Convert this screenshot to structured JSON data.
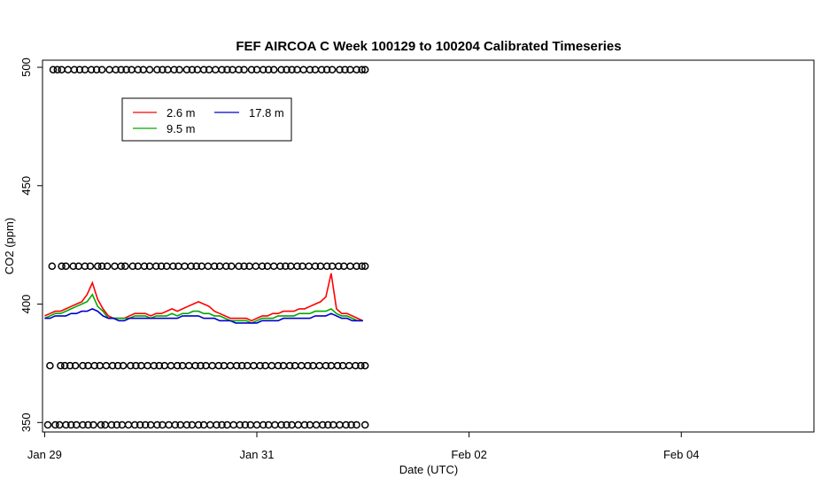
{
  "chart_data": {
    "type": "line",
    "title": "FEF AIRCOA C  Week 100129 to 100204  Calibrated Timeseries",
    "xlabel": "Date (UTC)",
    "ylabel": "CO2 (ppm)",
    "x_unit": "days",
    "xlim": [
      -0.02,
      7.25
    ],
    "ylim": [
      346,
      503
    ],
    "x_ticks": [
      {
        "value": 0,
        "label": "Jan 29"
      },
      {
        "value": 2,
        "label": "Jan 31"
      },
      {
        "value": 4,
        "label": "Feb 02"
      },
      {
        "value": 6,
        "label": "Feb 04"
      }
    ],
    "y_ticks": [
      {
        "value": 350,
        "label": "350"
      },
      {
        "value": 400,
        "label": "400"
      },
      {
        "value": 450,
        "label": "450"
      },
      {
        "value": 500,
        "label": "500"
      }
    ],
    "grid": false,
    "legend": {
      "position": "top-left",
      "entries": [
        {
          "label": "2.6 m",
          "color": "#ff0000"
        },
        {
          "label": "9.5 m",
          "color": "#00aa00"
        },
        {
          "label": "17.8 m",
          "color": "#0000cc"
        }
      ]
    },
    "series": [
      {
        "name": "2.6 m",
        "color": "#ff0000",
        "x": [
          0.0,
          0.05,
          0.1,
          0.15,
          0.2,
          0.25,
          0.3,
          0.35,
          0.4,
          0.45,
          0.5,
          0.55,
          0.6,
          0.65,
          0.7,
          0.75,
          0.8,
          0.85,
          0.9,
          0.95,
          1.0,
          1.05,
          1.1,
          1.15,
          1.2,
          1.25,
          1.3,
          1.35,
          1.4,
          1.45,
          1.5,
          1.55,
          1.6,
          1.65,
          1.7,
          1.75,
          1.8,
          1.85,
          1.9,
          1.95,
          2.0,
          2.05,
          2.1,
          2.15,
          2.2,
          2.25,
          2.3,
          2.35,
          2.4,
          2.45,
          2.5,
          2.55,
          2.6,
          2.65,
          2.7,
          2.75,
          2.8,
          2.85,
          2.9,
          2.95,
          3.0
        ],
        "values": [
          395,
          396,
          397,
          397,
          398,
          399,
          400,
          401,
          404,
          409,
          402,
          398,
          395,
          394,
          394,
          394,
          395,
          396,
          396,
          396,
          395,
          396,
          396,
          397,
          398,
          397,
          398,
          399,
          400,
          401,
          400,
          399,
          397,
          396,
          395,
          394,
          394,
          394,
          394,
          393,
          394,
          395,
          395,
          396,
          396,
          397,
          397,
          397,
          398,
          398,
          399,
          400,
          401,
          403,
          413,
          398,
          396,
          396,
          395,
          394,
          393
        ]
      },
      {
        "name": "9.5 m",
        "color": "#00aa00",
        "x": [
          0.0,
          0.05,
          0.1,
          0.15,
          0.2,
          0.25,
          0.3,
          0.35,
          0.4,
          0.45,
          0.5,
          0.55,
          0.6,
          0.65,
          0.7,
          0.75,
          0.8,
          0.85,
          0.9,
          0.95,
          1.0,
          1.05,
          1.1,
          1.15,
          1.2,
          1.25,
          1.3,
          1.35,
          1.4,
          1.45,
          1.5,
          1.55,
          1.6,
          1.65,
          1.7,
          1.75,
          1.8,
          1.85,
          1.9,
          1.95,
          2.0,
          2.05,
          2.1,
          2.15,
          2.2,
          2.25,
          2.3,
          2.35,
          2.4,
          2.45,
          2.5,
          2.55,
          2.6,
          2.65,
          2.7,
          2.75,
          2.8,
          2.85,
          2.9,
          2.95,
          3.0
        ],
        "values": [
          394,
          395,
          396,
          396,
          397,
          398,
          399,
          400,
          401,
          404,
          399,
          397,
          394,
          394,
          394,
          394,
          394,
          395,
          395,
          395,
          394,
          395,
          395,
          395,
          396,
          395,
          396,
          396,
          397,
          397,
          396,
          396,
          395,
          395,
          394,
          393,
          393,
          393,
          393,
          392,
          393,
          394,
          394,
          394,
          395,
          395,
          395,
          395,
          396,
          396,
          396,
          397,
          397,
          397,
          398,
          396,
          395,
          395,
          394,
          393,
          393
        ]
      },
      {
        "name": "17.8 m",
        "color": "#0000cc",
        "x": [
          0.0,
          0.05,
          0.1,
          0.15,
          0.2,
          0.25,
          0.3,
          0.35,
          0.4,
          0.45,
          0.5,
          0.55,
          0.6,
          0.65,
          0.7,
          0.75,
          0.8,
          0.85,
          0.9,
          0.95,
          1.0,
          1.05,
          1.1,
          1.15,
          1.2,
          1.25,
          1.3,
          1.35,
          1.4,
          1.45,
          1.5,
          1.55,
          1.6,
          1.65,
          1.7,
          1.75,
          1.8,
          1.85,
          1.9,
          1.95,
          2.0,
          2.05,
          2.1,
          2.15,
          2.2,
          2.25,
          2.3,
          2.35,
          2.4,
          2.45,
          2.5,
          2.55,
          2.6,
          2.65,
          2.7,
          2.75,
          2.8,
          2.85,
          2.9,
          2.95,
          3.0
        ],
        "values": [
          394,
          394,
          395,
          395,
          395,
          396,
          396,
          397,
          397,
          398,
          397,
          395,
          394,
          394,
          393,
          393,
          394,
          394,
          394,
          394,
          394,
          394,
          394,
          394,
          394,
          394,
          395,
          395,
          395,
          395,
          394,
          394,
          394,
          393,
          393,
          393,
          392,
          392,
          392,
          392,
          392,
          393,
          393,
          393,
          393,
          394,
          394,
          394,
          394,
          394,
          394,
          395,
          395,
          395,
          396,
          395,
          394,
          394,
          393,
          393,
          393
        ]
      }
    ],
    "marker_rows": [
      {
        "y": 499,
        "x": [
          0.08,
          0.12,
          0.16,
          0.22,
          0.28,
          0.33,
          0.38,
          0.44,
          0.49,
          0.54,
          0.61,
          0.67,
          0.72,
          0.77,
          0.82,
          0.88,
          0.93,
          0.99,
          1.06,
          1.11,
          1.16,
          1.22,
          1.27,
          1.34,
          1.39,
          1.44,
          1.5,
          1.55,
          1.61,
          1.67,
          1.72,
          1.77,
          1.83,
          1.88,
          1.95,
          2.0,
          2.06,
          2.11,
          2.16,
          2.23,
          2.28,
          2.33,
          2.38,
          2.44,
          2.5,
          2.55,
          2.61,
          2.66,
          2.71,
          2.78,
          2.83,
          2.88,
          2.94,
          2.99,
          3.02
        ]
      },
      {
        "y": 416,
        "x": [
          0.07,
          0.16,
          0.2,
          0.27,
          0.32,
          0.38,
          0.43,
          0.5,
          0.54,
          0.59,
          0.66,
          0.72,
          0.76,
          0.83,
          0.88,
          0.94,
          0.99,
          1.05,
          1.1,
          1.15,
          1.21,
          1.26,
          1.32,
          1.38,
          1.43,
          1.48,
          1.54,
          1.6,
          1.65,
          1.71,
          1.76,
          1.83,
          1.88,
          1.93,
          1.99,
          2.05,
          2.1,
          2.16,
          2.22,
          2.27,
          2.32,
          2.38,
          2.43,
          2.49,
          2.55,
          2.6,
          2.66,
          2.71,
          2.77,
          2.82,
          2.88,
          2.94,
          2.99,
          3.02
        ]
      },
      {
        "y": 374,
        "x": [
          0.05,
          0.15,
          0.19,
          0.24,
          0.29,
          0.36,
          0.41,
          0.47,
          0.52,
          0.58,
          0.64,
          0.69,
          0.74,
          0.81,
          0.86,
          0.91,
          0.97,
          1.03,
          1.08,
          1.13,
          1.19,
          1.25,
          1.3,
          1.36,
          1.42,
          1.47,
          1.52,
          1.58,
          1.64,
          1.69,
          1.75,
          1.81,
          1.86,
          1.91,
          1.97,
          2.03,
          2.08,
          2.14,
          2.2,
          2.25,
          2.31,
          2.36,
          2.42,
          2.48,
          2.53,
          2.59,
          2.65,
          2.7,
          2.76,
          2.81,
          2.87,
          2.93,
          2.98,
          3.02
        ]
      },
      {
        "y": 349,
        "x": [
          0.03,
          0.1,
          0.14,
          0.2,
          0.25,
          0.3,
          0.36,
          0.41,
          0.46,
          0.53,
          0.57,
          0.63,
          0.68,
          0.73,
          0.79,
          0.85,
          0.9,
          0.95,
          1.0,
          1.06,
          1.11,
          1.17,
          1.23,
          1.28,
          1.34,
          1.39,
          1.45,
          1.5,
          1.56,
          1.62,
          1.67,
          1.72,
          1.78,
          1.84,
          1.89,
          1.94,
          2.0,
          2.06,
          2.11,
          2.17,
          2.23,
          2.28,
          2.33,
          2.39,
          2.45,
          2.5,
          2.56,
          2.62,
          2.67,
          2.72,
          2.78,
          2.84,
          2.89,
          2.94,
          3.02
        ]
      }
    ]
  }
}
